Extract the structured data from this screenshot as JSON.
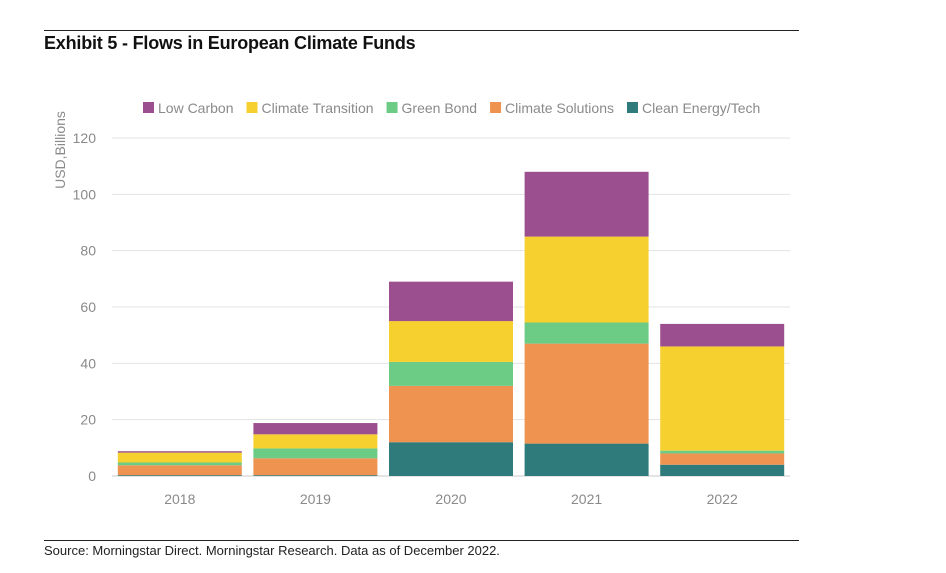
{
  "header": {
    "title": "Exhibit 5 - Flows in European Climate Funds"
  },
  "footer": {
    "source": "Source: Morningstar Direct. Morningstar Research. Data as of December 2022."
  },
  "chart_data": {
    "type": "bar",
    "stacked": true,
    "title": "Exhibit 5 - Flows in European Climate Funds",
    "xlabel": "",
    "ylabel": "USD,Billions",
    "ylim": [
      0,
      120
    ],
    "yticks": [
      0,
      20,
      40,
      60,
      80,
      100,
      120
    ],
    "grid": true,
    "legend_position": "top",
    "categories": [
      "2018",
      "2019",
      "2020",
      "2021",
      "2022"
    ],
    "series": [
      {
        "name": "Clean Energy/Tech",
        "color": "#2f7b7b",
        "values": [
          0.3,
          0.3,
          12,
          11.5,
          4
        ]
      },
      {
        "name": "Climate Solutions",
        "color": "#ef9350",
        "values": [
          3.5,
          6,
          20,
          35.5,
          4
        ]
      },
      {
        "name": "Green Bond",
        "color": "#6ccb85",
        "values": [
          1,
          3.5,
          8.5,
          7.5,
          1
        ]
      },
      {
        "name": "Climate Transition",
        "color": "#f5d02f",
        "values": [
          3.5,
          5,
          14.5,
          30.5,
          37
        ]
      },
      {
        "name": "Low Carbon",
        "color": "#9b4f8f",
        "values": [
          0.5,
          4,
          14,
          23,
          8
        ]
      }
    ],
    "legend_order": [
      "Low Carbon",
      "Climate Transition",
      "Green Bond",
      "Climate Solutions",
      "Clean Energy/Tech"
    ]
  }
}
